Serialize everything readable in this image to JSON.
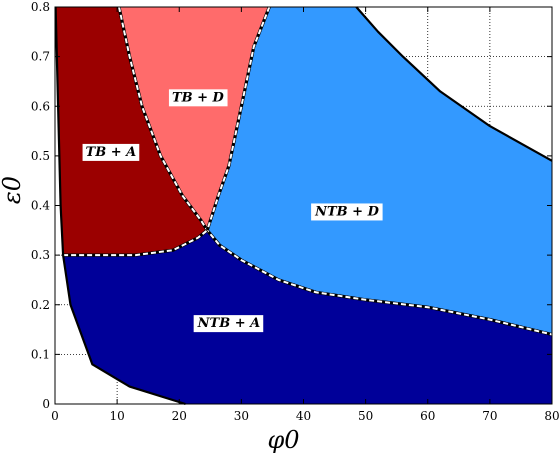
{
  "chart_data": {
    "type": "area",
    "title": "",
    "xlabel": "φ0",
    "ylabel": "ε0",
    "xlim": [
      0,
      80
    ],
    "ylim": [
      0,
      0.8
    ],
    "grid": true,
    "x_ticks": [
      "0",
      "10",
      "20",
      "30",
      "40",
      "50",
      "60",
      "70",
      "80"
    ],
    "y_ticks": [
      "0",
      "0.1",
      "0.2",
      "0.3",
      "0.4",
      "0.5",
      "0.6",
      "0.7",
      "0.8"
    ],
    "regions": [
      {
        "label": "TB + A",
        "color": "#9b0000",
        "label_at": [
          9,
          0.51
        ],
        "points": [
          [
            0.1,
            0.8
          ],
          [
            10.3,
            0.8
          ],
          [
            12,
            0.7
          ],
          [
            14,
            0.6
          ],
          [
            17,
            0.5
          ],
          [
            20.5,
            0.42
          ],
          [
            23.5,
            0.37
          ],
          [
            24.5,
            0.35
          ],
          [
            23,
            0.335
          ],
          [
            19,
            0.31
          ],
          [
            13,
            0.3
          ],
          [
            6,
            0.3
          ],
          [
            1.3,
            0.3
          ],
          [
            0.9,
            0.4
          ],
          [
            0.5,
            0.6
          ],
          [
            0.1,
            0.8
          ]
        ]
      },
      {
        "label": "TB + D",
        "color": "#ff6b6b",
        "label_at": [
          23,
          0.62
        ],
        "points": [
          [
            10.3,
            0.8
          ],
          [
            34.5,
            0.8
          ],
          [
            32,
            0.72
          ],
          [
            30,
            0.6
          ],
          [
            28,
            0.48
          ],
          [
            26.3,
            0.42
          ],
          [
            24.5,
            0.35
          ],
          [
            23.5,
            0.37
          ],
          [
            20.5,
            0.42
          ],
          [
            17,
            0.5
          ],
          [
            14,
            0.6
          ],
          [
            12,
            0.7
          ],
          [
            10.3,
            0.8
          ]
        ]
      },
      {
        "label": "NTB + D",
        "color": "#3399ff",
        "label_at": [
          47,
          0.39
        ],
        "points": [
          [
            34.5,
            0.8
          ],
          [
            48.5,
            0.8
          ],
          [
            52,
            0.75
          ],
          [
            56,
            0.7
          ],
          [
            62,
            0.63
          ],
          [
            70,
            0.56
          ],
          [
            80,
            0.49
          ],
          [
            80,
            0.14
          ],
          [
            70,
            0.17
          ],
          [
            60,
            0.195
          ],
          [
            50,
            0.21
          ],
          [
            42,
            0.225
          ],
          [
            36,
            0.25
          ],
          [
            30,
            0.29
          ],
          [
            26.5,
            0.32
          ],
          [
            24.5,
            0.35
          ],
          [
            26.3,
            0.42
          ],
          [
            28,
            0.48
          ],
          [
            30,
            0.6
          ],
          [
            32,
            0.72
          ],
          [
            34.5,
            0.8
          ]
        ]
      },
      {
        "label": "NTB + A",
        "color": "#000099",
        "label_at": [
          28,
          0.165
        ],
        "points": [
          [
            1.3,
            0.3
          ],
          [
            6,
            0.3
          ],
          [
            13,
            0.3
          ],
          [
            19,
            0.31
          ],
          [
            23,
            0.335
          ],
          [
            24.5,
            0.35
          ],
          [
            26.5,
            0.32
          ],
          [
            30,
            0.29
          ],
          [
            36,
            0.25
          ],
          [
            42,
            0.225
          ],
          [
            50,
            0.21
          ],
          [
            60,
            0.195
          ],
          [
            70,
            0.17
          ],
          [
            80,
            0.14
          ],
          [
            80,
            0
          ],
          [
            21,
            0
          ],
          [
            12,
            0.035
          ],
          [
            6,
            0.08
          ],
          [
            2.5,
            0.2
          ],
          [
            1.3,
            0.3
          ]
        ]
      }
    ],
    "boundaries": [
      {
        "style": "dashed",
        "points": [
          [
            10.3,
            0.8
          ],
          [
            12,
            0.7
          ],
          [
            14,
            0.6
          ],
          [
            17,
            0.5
          ],
          [
            20.5,
            0.42
          ],
          [
            23.5,
            0.37
          ],
          [
            24.5,
            0.35
          ],
          [
            26.5,
            0.32
          ],
          [
            30,
            0.29
          ],
          [
            36,
            0.25
          ],
          [
            42,
            0.225
          ],
          [
            50,
            0.21
          ],
          [
            60,
            0.195
          ],
          [
            70,
            0.17
          ],
          [
            80,
            0.14
          ]
        ]
      },
      {
        "style": "dashed",
        "points": [
          [
            1.3,
            0.3
          ],
          [
            6,
            0.3
          ],
          [
            13,
            0.3
          ],
          [
            19,
            0.31
          ],
          [
            23,
            0.335
          ],
          [
            24.5,
            0.35
          ]
        ]
      },
      {
        "style": "dashed",
        "points": [
          [
            34.5,
            0.8
          ],
          [
            32,
            0.72
          ],
          [
            30,
            0.6
          ],
          [
            28,
            0.48
          ],
          [
            26.3,
            0.42
          ],
          [
            24.5,
            0.35
          ]
        ]
      },
      {
        "style": "solid",
        "points": [
          [
            48.5,
            0.8
          ],
          [
            52,
            0.75
          ],
          [
            56,
            0.7
          ],
          [
            62,
            0.63
          ],
          [
            70,
            0.56
          ],
          [
            80,
            0.49
          ]
        ]
      },
      {
        "style": "solid",
        "points": [
          [
            0.1,
            0.8
          ],
          [
            0.5,
            0.6
          ],
          [
            0.9,
            0.4
          ],
          [
            1.3,
            0.3
          ],
          [
            2.5,
            0.2
          ],
          [
            6,
            0.08
          ],
          [
            12,
            0.035
          ],
          [
            21,
            0
          ]
        ]
      }
    ]
  }
}
